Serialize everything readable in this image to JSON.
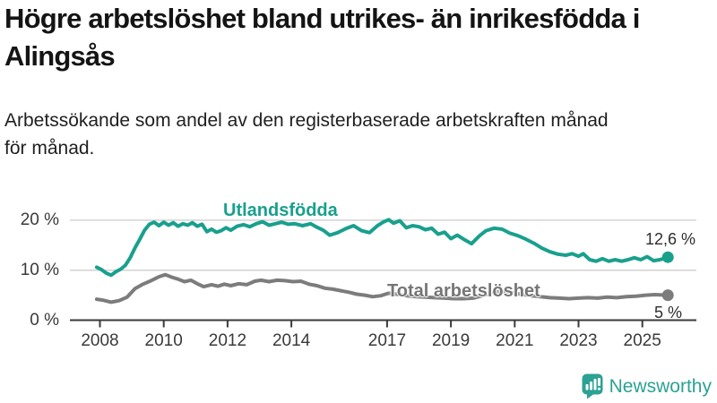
{
  "header": {
    "title_lines": [
      "Högre arbetslöshet bland utrikes- än inrikesfödda i",
      "Alingsås"
    ],
    "subtitle_lines": [
      "Arbetssökande som andel av den registerbaserade arbetskraften månad",
      "för månad."
    ]
  },
  "chart_data": {
    "type": "line",
    "title": "Högre arbetslöshet bland utrikes- än inrikesfödda i Alingsås",
    "subtitle": "Arbetssökande som andel av den registerbaserade arbetskraften månad för månad.",
    "unit": "percent",
    "xlim": [
      2007.05,
      2026.7
    ],
    "ylim": [
      0,
      23.7
    ],
    "grid": "horizontal",
    "legend_position": "inline-labels",
    "x_ticks": [
      {
        "value": 2008,
        "label": "2008"
      },
      {
        "value": 2010,
        "label": "2010"
      },
      {
        "value": 2012,
        "label": "2012"
      },
      {
        "value": 2014,
        "label": "2014"
      },
      {
        "value": 2017,
        "label": "2017"
      },
      {
        "value": 2019,
        "label": "2019"
      },
      {
        "value": 2021,
        "label": "2021"
      },
      {
        "value": 2023,
        "label": "2023"
      },
      {
        "value": 2025,
        "label": "2025"
      }
    ],
    "y_ticks": [
      {
        "value": 0,
        "label": "0 %"
      },
      {
        "value": 10,
        "label": "10 %"
      },
      {
        "value": 20,
        "label": "20 %"
      }
    ],
    "series": [
      {
        "name": "Utlandsfödda",
        "color": "#19a08d",
        "end_label": "12,6 %",
        "end_value": 12.6,
        "points": [
          [
            2007.9,
            10.6
          ],
          [
            2008.05,
            10.1
          ],
          [
            2008.2,
            9.4
          ],
          [
            2008.35,
            9.0
          ],
          [
            2008.5,
            9.7
          ],
          [
            2008.65,
            10.2
          ],
          [
            2008.8,
            11.0
          ],
          [
            2008.95,
            12.5
          ],
          [
            2009.1,
            14.5
          ],
          [
            2009.25,
            16.2
          ],
          [
            2009.4,
            18.0
          ],
          [
            2009.55,
            19.2
          ],
          [
            2009.7,
            19.6
          ],
          [
            2009.85,
            18.9
          ],
          [
            2010.0,
            19.6
          ],
          [
            2010.15,
            19.0
          ],
          [
            2010.3,
            19.5
          ],
          [
            2010.45,
            18.8
          ],
          [
            2010.6,
            19.3
          ],
          [
            2010.75,
            19.0
          ],
          [
            2010.9,
            19.5
          ],
          [
            2011.05,
            18.8
          ],
          [
            2011.2,
            19.2
          ],
          [
            2011.35,
            17.7
          ],
          [
            2011.5,
            18.2
          ],
          [
            2011.65,
            17.6
          ],
          [
            2011.8,
            17.9
          ],
          [
            2011.95,
            18.5
          ],
          [
            2012.1,
            18.0
          ],
          [
            2012.3,
            18.8
          ],
          [
            2012.5,
            19.1
          ],
          [
            2012.7,
            18.7
          ],
          [
            2012.9,
            19.3
          ],
          [
            2013.1,
            19.7
          ],
          [
            2013.3,
            19.0
          ],
          [
            2013.5,
            19.3
          ],
          [
            2013.7,
            19.6
          ],
          [
            2013.9,
            19.2
          ],
          [
            2014.1,
            19.3
          ],
          [
            2014.35,
            18.9
          ],
          [
            2014.6,
            19.3
          ],
          [
            2014.8,
            18.6
          ],
          [
            2015.0,
            18.0
          ],
          [
            2015.2,
            17.0
          ],
          [
            2015.45,
            17.5
          ],
          [
            2015.7,
            18.3
          ],
          [
            2015.95,
            18.9
          ],
          [
            2016.2,
            17.9
          ],
          [
            2016.45,
            17.5
          ],
          [
            2016.7,
            18.9
          ],
          [
            2016.9,
            19.7
          ],
          [
            2017.05,
            20.1
          ],
          [
            2017.2,
            19.4
          ],
          [
            2017.4,
            19.9
          ],
          [
            2017.6,
            18.5
          ],
          [
            2017.8,
            18.9
          ],
          [
            2018.0,
            18.7
          ],
          [
            2018.2,
            18.1
          ],
          [
            2018.4,
            18.4
          ],
          [
            2018.6,
            17.2
          ],
          [
            2018.8,
            17.6
          ],
          [
            2019.0,
            16.3
          ],
          [
            2019.2,
            17.0
          ],
          [
            2019.4,
            16.2
          ],
          [
            2019.65,
            15.3
          ],
          [
            2019.9,
            16.9
          ],
          [
            2020.1,
            17.9
          ],
          [
            2020.35,
            18.4
          ],
          [
            2020.6,
            18.2
          ],
          [
            2020.85,
            17.4
          ],
          [
            2021.1,
            16.9
          ],
          [
            2021.35,
            16.2
          ],
          [
            2021.6,
            15.4
          ],
          [
            2021.85,
            14.4
          ],
          [
            2022.1,
            13.7
          ],
          [
            2022.35,
            13.2
          ],
          [
            2022.6,
            13.0
          ],
          [
            2022.8,
            13.3
          ],
          [
            2023.0,
            12.8
          ],
          [
            2023.15,
            13.3
          ],
          [
            2023.35,
            12.1
          ],
          [
            2023.55,
            11.8
          ],
          [
            2023.75,
            12.3
          ],
          [
            2023.95,
            11.8
          ],
          [
            2024.15,
            12.1
          ],
          [
            2024.35,
            11.8
          ],
          [
            2024.55,
            12.1
          ],
          [
            2024.75,
            12.5
          ],
          [
            2024.95,
            12.1
          ],
          [
            2025.15,
            12.7
          ],
          [
            2025.35,
            11.9
          ],
          [
            2025.55,
            12.1
          ],
          [
            2025.8,
            12.6
          ]
        ]
      },
      {
        "name": "Total arbetslöshet",
        "color": "#7c7c7c",
        "end_label": "5 %",
        "end_value": 5.0,
        "points": [
          [
            2007.9,
            4.2
          ],
          [
            2008.1,
            4.0
          ],
          [
            2008.35,
            3.6
          ],
          [
            2008.6,
            3.9
          ],
          [
            2008.85,
            4.6
          ],
          [
            2009.1,
            6.3
          ],
          [
            2009.35,
            7.2
          ],
          [
            2009.6,
            7.9
          ],
          [
            2009.85,
            8.7
          ],
          [
            2010.05,
            9.1
          ],
          [
            2010.25,
            8.6
          ],
          [
            2010.45,
            8.2
          ],
          [
            2010.65,
            7.7
          ],
          [
            2010.85,
            8.0
          ],
          [
            2011.05,
            7.3
          ],
          [
            2011.25,
            6.7
          ],
          [
            2011.5,
            7.1
          ],
          [
            2011.7,
            6.8
          ],
          [
            2011.9,
            7.2
          ],
          [
            2012.1,
            6.9
          ],
          [
            2012.35,
            7.3
          ],
          [
            2012.6,
            7.1
          ],
          [
            2012.85,
            7.8
          ],
          [
            2013.05,
            8.0
          ],
          [
            2013.3,
            7.7
          ],
          [
            2013.55,
            8.0
          ],
          [
            2013.8,
            7.9
          ],
          [
            2014.05,
            7.7
          ],
          [
            2014.3,
            7.8
          ],
          [
            2014.55,
            7.2
          ],
          [
            2014.8,
            6.9
          ],
          [
            2015.05,
            6.4
          ],
          [
            2015.3,
            6.2
          ],
          [
            2015.55,
            5.9
          ],
          [
            2015.8,
            5.6
          ],
          [
            2016.05,
            5.2
          ],
          [
            2016.3,
            5.0
          ],
          [
            2016.55,
            4.7
          ],
          [
            2016.8,
            4.9
          ],
          [
            2017.05,
            5.4
          ],
          [
            2017.3,
            5.2
          ],
          [
            2017.6,
            4.9
          ],
          [
            2017.9,
            4.7
          ],
          [
            2018.2,
            4.6
          ],
          [
            2018.5,
            4.5
          ],
          [
            2018.8,
            4.4
          ],
          [
            2019.1,
            4.3
          ],
          [
            2019.4,
            4.3
          ],
          [
            2019.7,
            4.4
          ],
          [
            2020.0,
            4.9
          ],
          [
            2020.3,
            5.6
          ],
          [
            2020.6,
            5.8
          ],
          [
            2020.9,
            5.5
          ],
          [
            2021.2,
            5.2
          ],
          [
            2021.5,
            4.9
          ],
          [
            2021.8,
            4.7
          ],
          [
            2022.1,
            4.5
          ],
          [
            2022.4,
            4.4
          ],
          [
            2022.7,
            4.3
          ],
          [
            2023.0,
            4.4
          ],
          [
            2023.3,
            4.5
          ],
          [
            2023.6,
            4.4
          ],
          [
            2023.9,
            4.6
          ],
          [
            2024.2,
            4.5
          ],
          [
            2024.5,
            4.7
          ],
          [
            2024.8,
            4.8
          ],
          [
            2025.1,
            5.0
          ],
          [
            2025.4,
            5.1
          ],
          [
            2025.8,
            5.0
          ]
        ]
      }
    ]
  },
  "footer": {
    "brand": "Newsworthy",
    "logo_icon": "bar-chart-speech-bubble-icon",
    "brand_color": "#2ba294"
  },
  "colors": {
    "utlandsfodda_line": "#19a08d",
    "total_line": "#7c7c7c",
    "gridline": "#d2d2d2",
    "axis": "#3a3a3a"
  }
}
